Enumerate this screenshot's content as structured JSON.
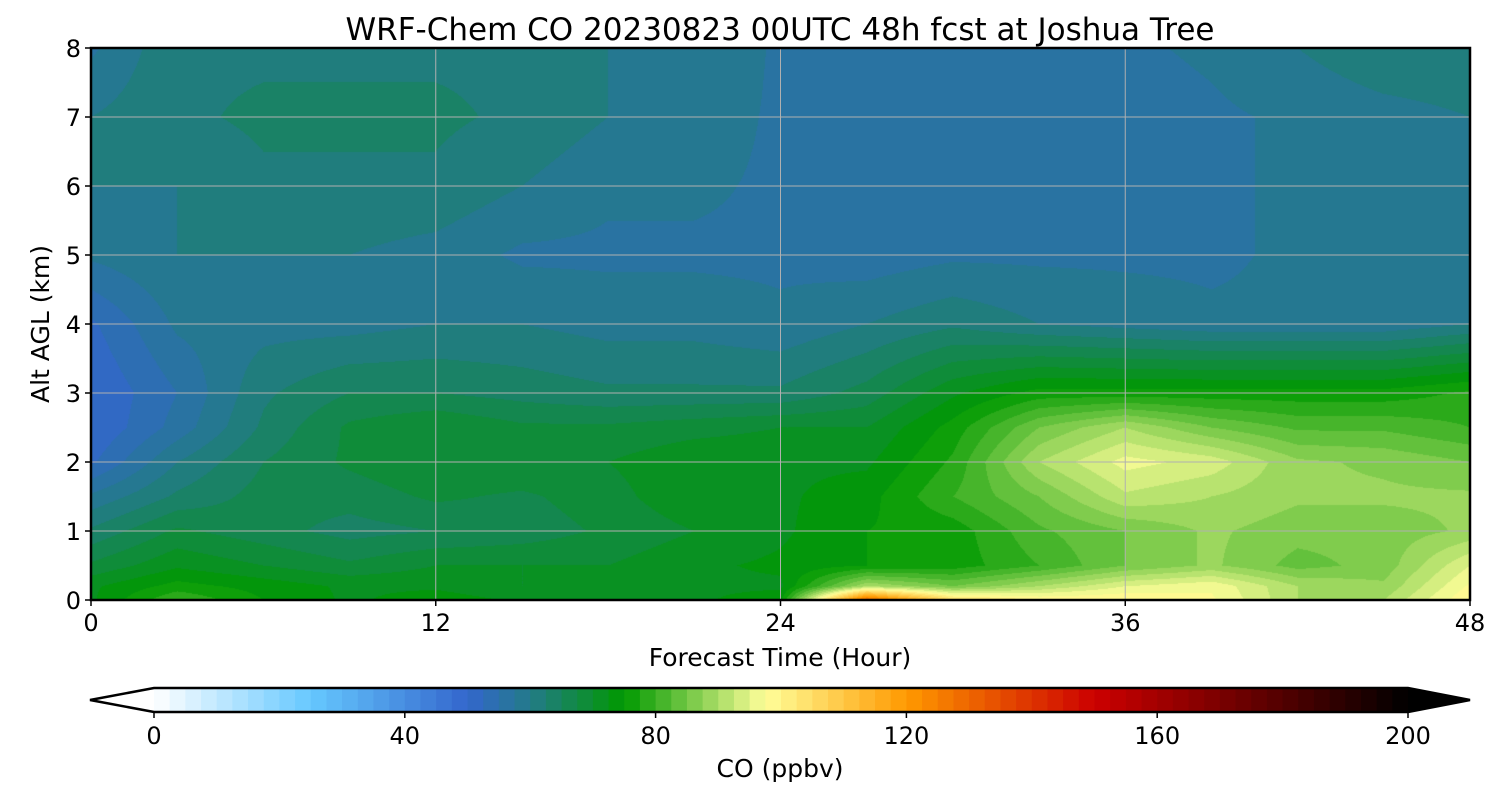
{
  "chart_data": {
    "type": "heatmap",
    "title": "WRF-Chem CO  20230823 00UTC 48h fcst at Joshua Tree",
    "xlabel": "Forecast Time (Hour)",
    "ylabel": "Alt AGL (km)",
    "xlim": [
      0,
      48
    ],
    "ylim": [
      0,
      8
    ],
    "xticks": [
      "0",
      "12",
      "24",
      "36",
      "48"
    ],
    "yticks": [
      "0",
      "1",
      "2",
      "3",
      "4",
      "5",
      "6",
      "7",
      "8"
    ],
    "grid": true,
    "x": [
      0,
      3,
      6,
      9,
      12,
      15,
      18,
      21,
      24,
      27,
      30,
      33,
      36,
      39,
      42,
      45,
      48
    ],
    "y": [
      0,
      0.2,
      0.5,
      1,
      1.5,
      2,
      2.5,
      3,
      4,
      5,
      6,
      7,
      8
    ],
    "z": [
      [
        72,
        80,
        75,
        72,
        74,
        72,
        72,
        72,
        74,
        130,
        105,
        100,
        100,
        98,
        90,
        90,
        100
      ],
      [
        72,
        76,
        74,
        72,
        72,
        70,
        70,
        72,
        72,
        90,
        85,
        90,
        95,
        97,
        90,
        88,
        98
      ],
      [
        68,
        72,
        70,
        68,
        70,
        70,
        70,
        72,
        73,
        75,
        76,
        80,
        85,
        88,
        84,
        86,
        95
      ],
      [
        63,
        68,
        66,
        64,
        65,
        66,
        68,
        70,
        72,
        75,
        76,
        82,
        85,
        88,
        86,
        86,
        88
      ],
      [
        58,
        63,
        66,
        66,
        68,
        67,
        69,
        72,
        72,
        74,
        80,
        85,
        92,
        90,
        88,
        88,
        88
      ],
      [
        52,
        60,
        65,
        68,
        70,
        70,
        70,
        72,
        72,
        72,
        78,
        90,
        96,
        94,
        88,
        87,
        85
      ],
      [
        50,
        56,
        63,
        68,
        70,
        68,
        68,
        69,
        70,
        70,
        76,
        85,
        90,
        85,
        82,
        82,
        80
      ],
      [
        50,
        55,
        62,
        65,
        65,
        64,
        63,
        63,
        63,
        66,
        72,
        76,
        76,
        76,
        76,
        76,
        78
      ],
      [
        52,
        58,
        59,
        59,
        60,
        60,
        59,
        59,
        58,
        60,
        62,
        60,
        59,
        58,
        58,
        58,
        60
      ],
      [
        58,
        60,
        60,
        60,
        59,
        57,
        57,
        57,
        57,
        56,
        57,
        57,
        57,
        57,
        58,
        58,
        58
      ],
      [
        60,
        60,
        62,
        62,
        62,
        60,
        58,
        58,
        57,
        56,
        56,
        56,
        56,
        57,
        58,
        58,
        58
      ],
      [
        60,
        62,
        63,
        63,
        63,
        62,
        60,
        59,
        57,
        56,
        56,
        56,
        56,
        57,
        58,
        59,
        60
      ],
      [
        57,
        62,
        62,
        62,
        62,
        62,
        60,
        60,
        57,
        57,
        57,
        57,
        57,
        58,
        60,
        62,
        62
      ]
    ],
    "colorbar": {
      "label": "CO  (ppbv)",
      "range": [
        0,
        200
      ],
      "step": 2.5,
      "extend": "both",
      "ticks": [
        "0",
        "40",
        "80",
        "120",
        "160",
        "200"
      ],
      "anchors": [
        {
          "v": 0,
          "c": "#ffffff"
        },
        {
          "v": 25,
          "c": "#66c8ff"
        },
        {
          "v": 50,
          "c": "#3366cc"
        },
        {
          "v": 60,
          "c": "#237a88"
        },
        {
          "v": 75,
          "c": "#009900"
        },
        {
          "v": 97.5,
          "c": "#ffff99"
        },
        {
          "v": 120,
          "c": "#ff9900"
        },
        {
          "v": 150,
          "c": "#cc0000"
        },
        {
          "v": 200,
          "c": "#000000"
        }
      ]
    }
  }
}
